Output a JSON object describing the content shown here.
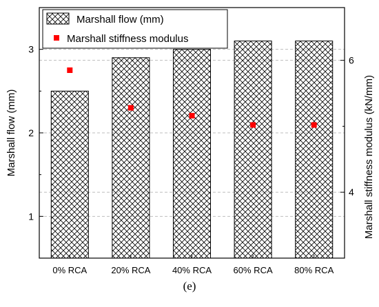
{
  "caption": "(e)",
  "chart_data": {
    "type": "bar",
    "categories": [
      "0% RCA",
      "20% RCA",
      "40% RCA",
      "60% RCA",
      "80% RCA"
    ],
    "series": [
      {
        "name": "Marshall flow (mm)",
        "kind": "bar",
        "axis": "left",
        "pattern": "crosshatch",
        "values": [
          2.5,
          2.9,
          3.0,
          3.1,
          3.1
        ]
      },
      {
        "name": "Marshall stiffness modulus",
        "kind": "scatter",
        "axis": "right",
        "color": "#ff0000",
        "values": [
          5.85,
          5.28,
          5.16,
          5.02,
          5.02
        ]
      }
    ],
    "ylabel": "Marshall flow (mm)",
    "ylabel_right": "Marshall stiffness modulus (kN/mm)",
    "ylim": [
      0.5,
      3.5
    ],
    "yticks": [
      1,
      2,
      3
    ],
    "ylim_right": [
      3.0,
      6.8
    ],
    "yticks_right": [
      4,
      6
    ],
    "grid": "horizontal dashed",
    "legend_position": "top"
  }
}
